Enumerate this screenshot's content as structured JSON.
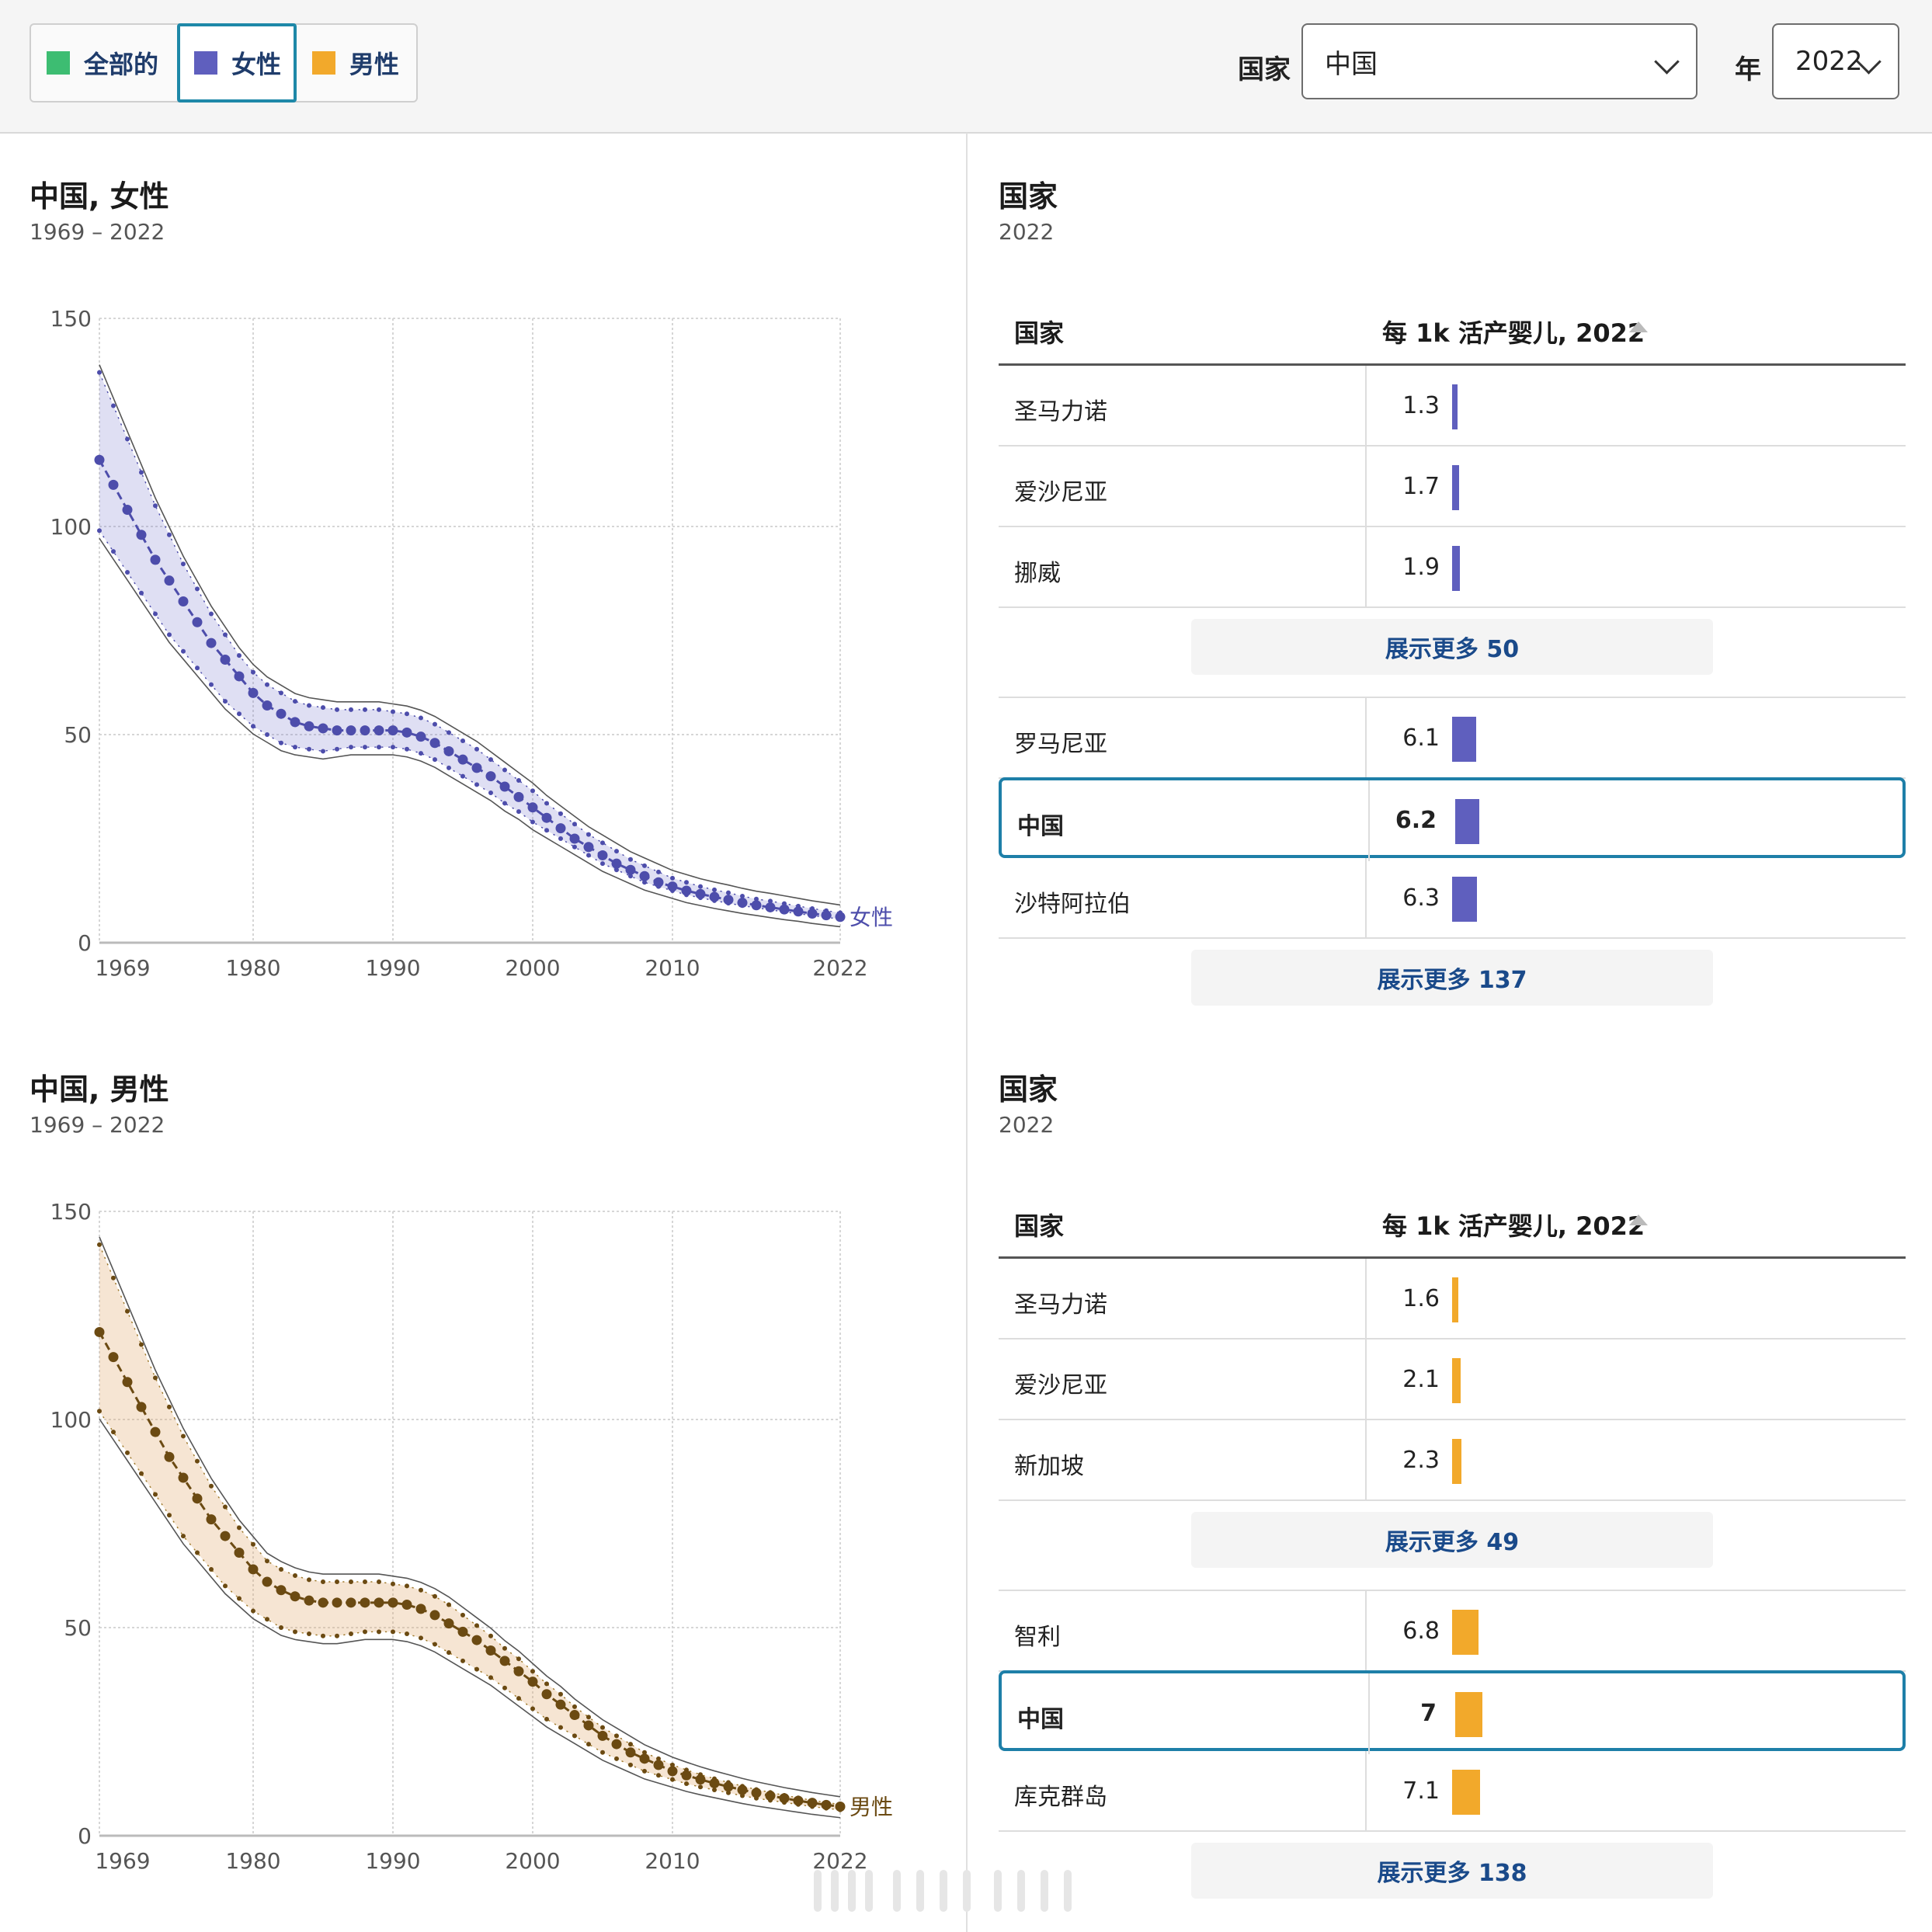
{
  "filters": {
    "segments": [
      {
        "label": "全部的",
        "color": "#3dbd72"
      },
      {
        "label": "女性",
        "color": "#5f5fbe"
      },
      {
        "label": "男性",
        "color": "#f2a92b"
      }
    ],
    "active_segment": "女性",
    "country_label": "国家",
    "country_value": "中国",
    "year_label": "年",
    "year_value": "2022"
  },
  "female_panel": {
    "title": "中国, 女性",
    "subtitle": "1969 – 2022",
    "end_label": "女性"
  },
  "male_panel": {
    "title": "中国, 男性",
    "subtitle": "1969 – 2022",
    "end_label": "男性"
  },
  "female_table": {
    "title": "国家",
    "subtitle": "2022",
    "col_country": "国家",
    "col_value": "每 1k 活产婴儿, 2022",
    "top_rows": [
      {
        "country": "圣马力诺",
        "value": "1.3",
        "num": 1.3
      },
      {
        "country": "爱沙尼亚",
        "value": "1.7",
        "num": 1.7
      },
      {
        "country": "挪威",
        "value": "1.9",
        "num": 1.9
      }
    ],
    "show_more_1": "展示更多 50",
    "mid_rows": [
      {
        "country": "罗马尼亚",
        "value": "6.1",
        "num": 6.1,
        "highlight": false
      },
      {
        "country": "中国",
        "value": "6.2",
        "num": 6.2,
        "highlight": true
      },
      {
        "country": "沙特阿拉伯",
        "value": "6.3",
        "num": 6.3,
        "highlight": false
      }
    ],
    "show_more_2": "展示更多 137"
  },
  "male_table": {
    "title": "国家",
    "subtitle": "2022",
    "col_country": "国家",
    "col_value": "每 1k 活产婴儿, 2022",
    "top_rows": [
      {
        "country": "圣马力诺",
        "value": "1.6",
        "num": 1.6
      },
      {
        "country": "爱沙尼亚",
        "value": "2.1",
        "num": 2.1
      },
      {
        "country": "新加坡",
        "value": "2.3",
        "num": 2.3
      }
    ],
    "show_more_1": "展示更多 49",
    "mid_rows": [
      {
        "country": "智利",
        "value": "6.8",
        "num": 6.8,
        "highlight": false
      },
      {
        "country": "中国",
        "value": "7",
        "num": 7,
        "highlight": true
      },
      {
        "country": "库克群岛",
        "value": "7.1",
        "num": 7.1,
        "highlight": false
      }
    ],
    "show_more_2": "展示更多 138"
  },
  "chart_data": [
    {
      "type": "line",
      "title": "中国, 女性",
      "subtitle": "1969 – 2022",
      "xlim": [
        1969,
        2022
      ],
      "ylim": [
        0,
        150
      ],
      "x_ticks": [
        1969,
        1980,
        1990,
        2000,
        2010,
        2022
      ],
      "y_ticks": [
        0,
        50,
        100,
        150
      ],
      "grid": true,
      "color": "#4d4dab",
      "series": [
        {
          "name": "女性",
          "x": [
            1969,
            1970,
            1971,
            1972,
            1973,
            1974,
            1975,
            1976,
            1977,
            1978,
            1979,
            1980,
            1981,
            1982,
            1983,
            1984,
            1985,
            1986,
            1987,
            1988,
            1989,
            1990,
            1991,
            1992,
            1993,
            1994,
            1995,
            1996,
            1997,
            1998,
            1999,
            2000,
            2001,
            2002,
            2003,
            2004,
            2005,
            2006,
            2007,
            2008,
            2009,
            2010,
            2011,
            2012,
            2013,
            2014,
            2015,
            2016,
            2017,
            2018,
            2019,
            2020,
            2021,
            2022
          ],
          "y": [
            116,
            110,
            104,
            98,
            92,
            87,
            82,
            77,
            72,
            68,
            64,
            60,
            57,
            55,
            53,
            52,
            51.5,
            51,
            51,
            51,
            51,
            51,
            50.5,
            49.5,
            48,
            46,
            44,
            42,
            40,
            37.5,
            35,
            32.5,
            30,
            27.5,
            25,
            23,
            21,
            19,
            17.5,
            16,
            14.5,
            13.5,
            12.5,
            11.7,
            11,
            10.3,
            9.6,
            9,
            8.5,
            8,
            7.5,
            7,
            6.6,
            6.2
          ],
          "upper": [
            137,
            129,
            121,
            113,
            105,
            98,
            91,
            85,
            79,
            74,
            69,
            65,
            62,
            60,
            58,
            57,
            56.5,
            56,
            56,
            56,
            56,
            55.5,
            55,
            54,
            52.5,
            50.5,
            48.5,
            46.5,
            44,
            41.5,
            39,
            36.5,
            33.5,
            31,
            28.5,
            26,
            24,
            22,
            20,
            18.5,
            17,
            15.5,
            14.5,
            13.5,
            12.7,
            12,
            11.2,
            10.5,
            10,
            9.4,
            8.8,
            8.2,
            7.7,
            7.2
          ],
          "lower": [
            99,
            94,
            89,
            84,
            79,
            74,
            70,
            66,
            62,
            58,
            55,
            52,
            50,
            48,
            47,
            46.5,
            46,
            46.5,
            47,
            47,
            47,
            47,
            46.5,
            45.5,
            44,
            42,
            40,
            38,
            36,
            33.5,
            31.5,
            29,
            27,
            25,
            23,
            21,
            19,
            17.5,
            16,
            14.5,
            13.5,
            12.5,
            11.5,
            10.8,
            10.1,
            9.5,
            8.9,
            8.4,
            7.9,
            7.4,
            7,
            6.5,
            6.1,
            5.7
          ]
        }
      ]
    },
    {
      "type": "line",
      "title": "中国, 男性",
      "subtitle": "1969 – 2022",
      "xlim": [
        1969,
        2022
      ],
      "ylim": [
        0,
        150
      ],
      "x_ticks": [
        1969,
        1980,
        1990,
        2000,
        2010,
        2022
      ],
      "y_ticks": [
        0,
        50,
        100,
        150
      ],
      "grid": true,
      "color": "#6b4a12",
      "series": [
        {
          "name": "男性",
          "x": [
            1969,
            1970,
            1971,
            1972,
            1973,
            1974,
            1975,
            1976,
            1977,
            1978,
            1979,
            1980,
            1981,
            1982,
            1983,
            1984,
            1985,
            1986,
            1987,
            1988,
            1989,
            1990,
            1991,
            1992,
            1993,
            1994,
            1995,
            1996,
            1997,
            1998,
            1999,
            2000,
            2001,
            2002,
            2003,
            2004,
            2005,
            2006,
            2007,
            2008,
            2009,
            2010,
            2011,
            2012,
            2013,
            2014,
            2015,
            2016,
            2017,
            2018,
            2019,
            2020,
            2021,
            2022
          ],
          "y": [
            121,
            115,
            109,
            103,
            97,
            91,
            86,
            81,
            76,
            72,
            68,
            64,
            61,
            59,
            57.5,
            56.5,
            56,
            56,
            56,
            56,
            56,
            56,
            55.5,
            54.5,
            53,
            51,
            49,
            47,
            44.5,
            42,
            39.5,
            37,
            34,
            31.5,
            29,
            26.5,
            24,
            22,
            20,
            18.5,
            17,
            15.5,
            14.5,
            13.5,
            12.6,
            11.8,
            11,
            10.3,
            9.6,
            9,
            8.4,
            7.9,
            7.4,
            7
          ],
          "upper": [
            142,
            134,
            126,
            118,
            110,
            103,
            96,
            90,
            84,
            79,
            74,
            70,
            66,
            64,
            62.5,
            61.5,
            61,
            61,
            61,
            61,
            61,
            60.5,
            60,
            59,
            57.5,
            55.5,
            53,
            50.5,
            48,
            45,
            42.5,
            39.5,
            36.5,
            34,
            31,
            28.5,
            26,
            24,
            22,
            20,
            18.5,
            17,
            15.8,
            14.7,
            13.7,
            12.8,
            11.9,
            11.1,
            10.4,
            9.7,
            9.1,
            8.5,
            8,
            7.5
          ],
          "lower": [
            102,
            97,
            92,
            87,
            82,
            77,
            72,
            68,
            64,
            60,
            57,
            54,
            52,
            50,
            49,
            48.5,
            48,
            48,
            48.5,
            49,
            49,
            49,
            48.5,
            47.5,
            46,
            44,
            42,
            40,
            38,
            35.5,
            33,
            30.5,
            28,
            26,
            24,
            22,
            20,
            18.5,
            17,
            15.5,
            14.5,
            13.5,
            12.5,
            11.7,
            11,
            10.3,
            9.6,
            9,
            8.5,
            8,
            7.5,
            7,
            6.6,
            6.2
          ]
        }
      ]
    }
  ]
}
